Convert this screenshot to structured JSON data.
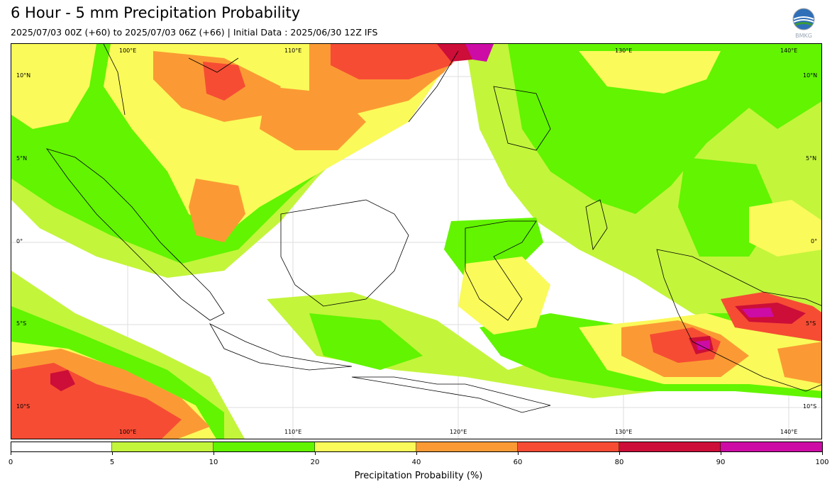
{
  "header": {
    "title": "6 Hour - 5 mm Precipitation Probability",
    "subtitle": "2025/07/03 00Z (+60) to 2025/07/03 06Z (+66) | Initial Data : 2025/06/30 12Z IFS"
  },
  "logo": {
    "icon": "bmkg-logo-icon",
    "text": "BMKG"
  },
  "map": {
    "lon_range": [
      94.5,
      143.5
    ],
    "lat_range": [
      -12.0,
      12.0
    ],
    "lon_labels_top": [
      "100°E",
      "110°E",
      "130°E",
      "140°E"
    ],
    "lon_labels_bottom": [
      "100°E",
      "110°E",
      "120°E",
      "130°E",
      "140°E"
    ],
    "lat_labels_left": [
      "10°N",
      "5°N",
      "0°",
      "5°S",
      "10°S"
    ],
    "lat_labels_right": [
      "10°N",
      "5°N",
      "0°",
      "5°S",
      "10°S"
    ]
  },
  "colorbar": {
    "label": "Precipitation Probability (%)",
    "ticks": [
      "0",
      "5",
      "10",
      "20",
      "40",
      "60",
      "80",
      "90",
      "100"
    ],
    "colors": [
      "#ffffff",
      "#c3f53b",
      "#62f400",
      "#fafa5a",
      "#fb9a34",
      "#f64c34",
      "#cc0e38",
      "#cd0ca5"
    ]
  }
}
